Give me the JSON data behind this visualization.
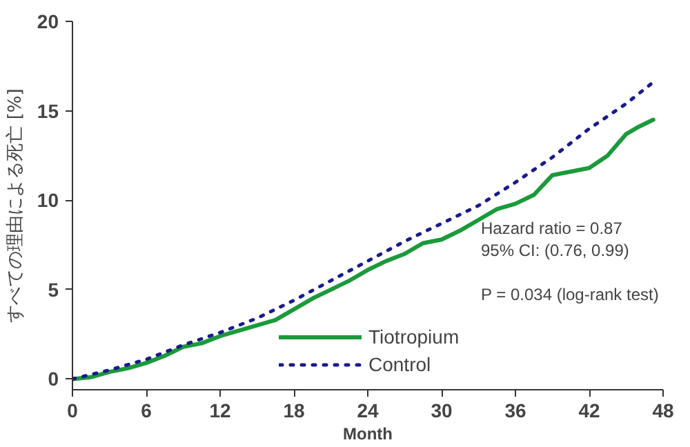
{
  "chart_data": {
    "type": "line",
    "xlabel": "Month",
    "ylabel": "すべての理由による死亡 [%]",
    "xlim": [
      0,
      48
    ],
    "ylim": [
      -0.6,
      20
    ],
    "xticks": [
      0,
      6,
      12,
      18,
      24,
      30,
      36,
      42,
      48
    ],
    "yticks": [
      0,
      5,
      10,
      15,
      20
    ],
    "grid": false,
    "legend": "bottom",
    "marker": "none",
    "series": [
      {
        "name": "Tiotropium",
        "color": "#1a9a3a",
        "line_style": "solid",
        "x": [
          0,
          1.5,
          3,
          4.5,
          6,
          7.5,
          9,
          10.5,
          12,
          13.5,
          15,
          16.5,
          18,
          19.5,
          21,
          22.5,
          24,
          25.5,
          27,
          28.5,
          30,
          31.5,
          33,
          34.5,
          36,
          37.5,
          39,
          40.5,
          42,
          43.5,
          45,
          46,
          47.2
        ],
        "values": [
          0,
          0.1,
          0.4,
          0.6,
          0.9,
          1.3,
          1.8,
          2.0,
          2.4,
          2.7,
          3.0,
          3.3,
          3.9,
          4.5,
          5.0,
          5.5,
          6.1,
          6.6,
          7.0,
          7.6,
          7.8,
          8.3,
          8.9,
          9.5,
          9.8,
          10.3,
          11.4,
          11.6,
          11.8,
          12.5,
          13.7,
          14.1,
          14.5
        ]
      },
      {
        "name": "Control",
        "color": "#1a1a8c",
        "line_style": "dotted",
        "x": [
          0,
          3,
          6,
          9,
          12,
          15,
          18,
          21,
          24,
          27,
          30,
          33,
          36,
          39,
          42,
          45,
          47.2
        ],
        "values": [
          0,
          0.5,
          1.1,
          1.9,
          2.6,
          3.4,
          4.4,
          5.5,
          6.6,
          7.7,
          8.7,
          9.7,
          11.0,
          12.4,
          14.0,
          15.4,
          16.6
        ]
      }
    ],
    "annotations": [
      "Hazard ratio = 0.87",
      "95% CI: (0.76, 0.99)",
      "P = 0.034 (log-rank test)"
    ]
  }
}
